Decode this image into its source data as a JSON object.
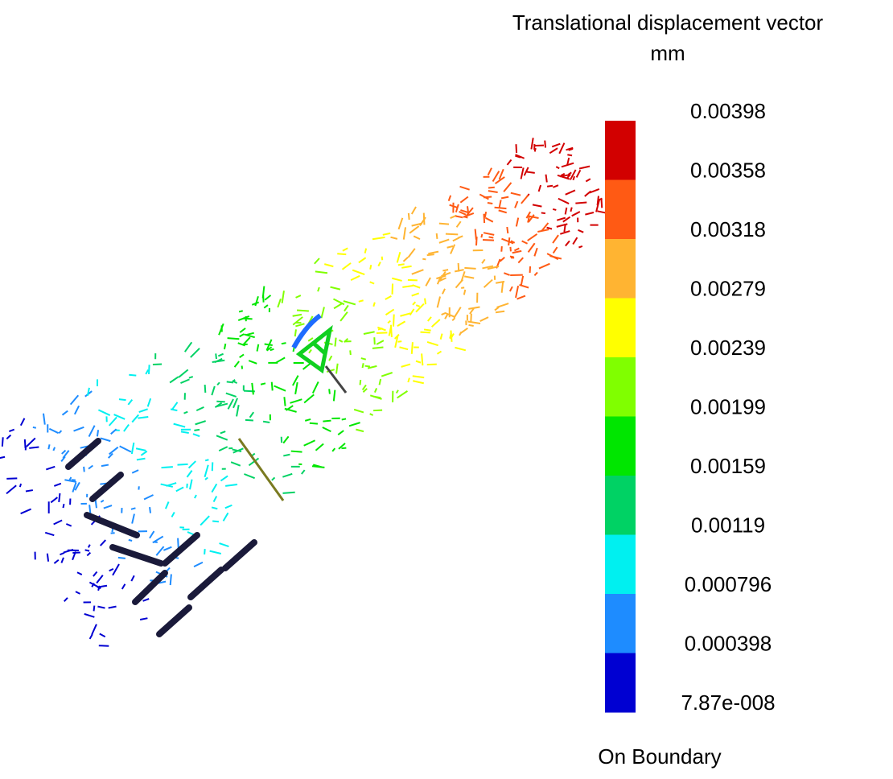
{
  "legend": {
    "title": "Translational displacement vector",
    "unit": "mm",
    "labels": [
      "0.00398",
      "0.00358",
      "0.00318",
      "0.00279",
      "0.00239",
      "0.00199",
      "0.00159",
      "0.00119",
      "0.000796",
      "0.000398",
      "7.87e-008"
    ],
    "colors": [
      "#d20000",
      "#ff5a14",
      "#ffb432",
      "#ffff00",
      "#80ff00",
      "#00e600",
      "#00d264",
      "#00f0f0",
      "#1e8cff",
      "#0000d2"
    ]
  },
  "footer": "On Boundary"
}
